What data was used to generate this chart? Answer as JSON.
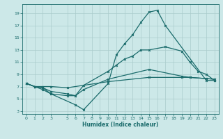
{
  "xlabel": "Humidex (Indice chaleur)",
  "bg_color": "#cce8e8",
  "grid_color": "#aacccc",
  "line_color": "#1a6b6b",
  "ylim": [
    2.5,
    20.5
  ],
  "xlim": [
    -0.5,
    23.5
  ],
  "yticks": [
    3,
    5,
    7,
    9,
    11,
    13,
    15,
    17,
    19
  ],
  "xticks": [
    0,
    1,
    2,
    3,
    5,
    6,
    7,
    8,
    9,
    10,
    11,
    12,
    13,
    14,
    15,
    16,
    17,
    18,
    19,
    20,
    21,
    22,
    23
  ],
  "line1_x": [
    0,
    1,
    2,
    3,
    6,
    7,
    10,
    11,
    12,
    13,
    14,
    15,
    16,
    17,
    22,
    23
  ],
  "line1_y": [
    7.5,
    7.0,
    6.5,
    5.8,
    4.0,
    3.2,
    7.5,
    12.2,
    14.0,
    15.5,
    17.5,
    19.2,
    19.5,
    17.0,
    8.0,
    8.0
  ],
  "line2_x": [
    0,
    1,
    2,
    3,
    5,
    6,
    7,
    10,
    11,
    12,
    13,
    14,
    15,
    17,
    19,
    20,
    21,
    22,
    23
  ],
  "line2_y": [
    7.5,
    7.0,
    6.8,
    5.8,
    5.5,
    5.5,
    7.2,
    9.5,
    10.5,
    11.5,
    12.0,
    13.0,
    13.0,
    13.5,
    12.8,
    11.0,
    9.5,
    9.0,
    8.0
  ],
  "line3_x": [
    0,
    1,
    2,
    3,
    5,
    10,
    15,
    19,
    20,
    22,
    23
  ],
  "line3_y": [
    7.5,
    7.0,
    7.0,
    7.0,
    6.8,
    7.8,
    8.5,
    8.5,
    8.5,
    8.3,
    8.2
  ],
  "line4_x": [
    0,
    1,
    2,
    3,
    5,
    6,
    7,
    10,
    15,
    19,
    20,
    22,
    23
  ],
  "line4_y": [
    7.5,
    7.0,
    6.8,
    6.2,
    5.8,
    5.5,
    6.5,
    8.2,
    9.8,
    8.7,
    8.5,
    8.3,
    8.2
  ]
}
